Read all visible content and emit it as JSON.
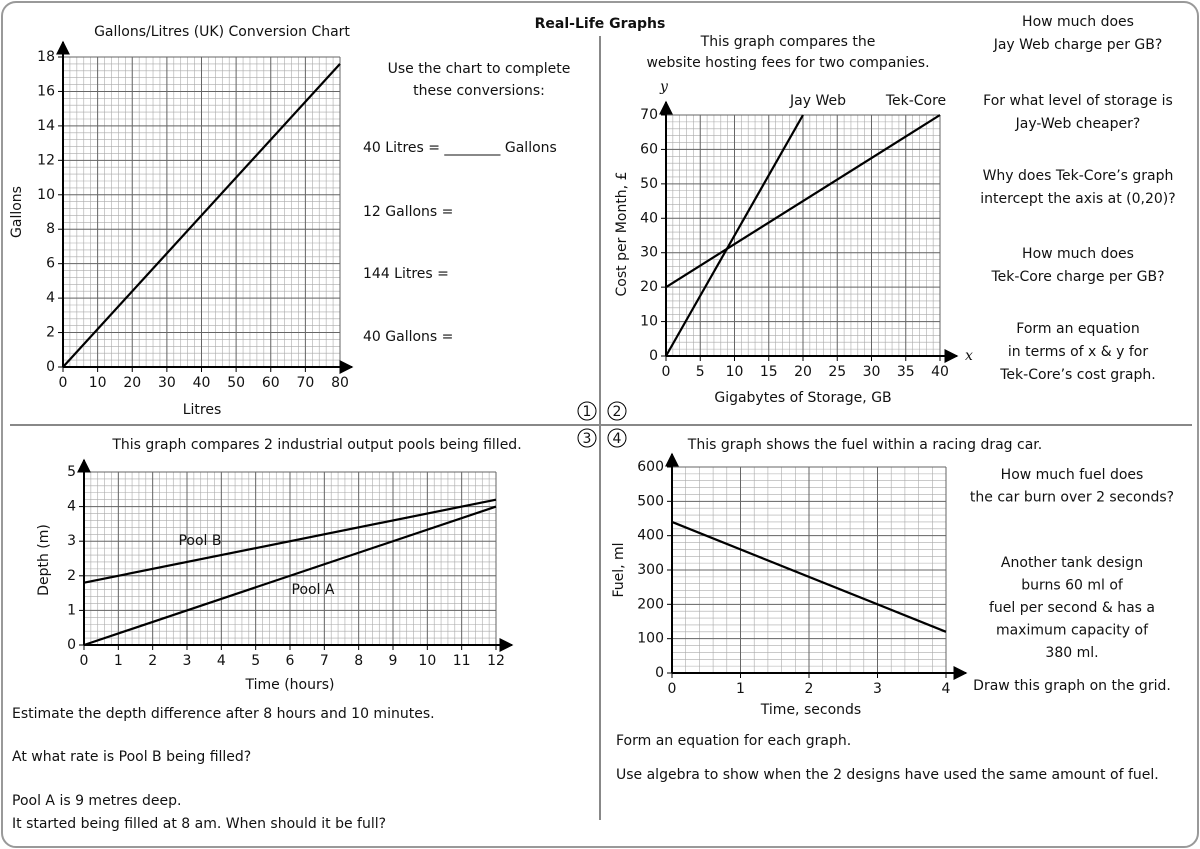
{
  "title": "Real-Life Graphs",
  "panels": [
    {
      "number": "1",
      "prompt": [
        "Use the chart to complete",
        "these conversions:"
      ],
      "conversions": [
        "40 Litres = ________ Gallons",
        "12 Gallons =",
        "144 Litres =",
        "40 Gallons ="
      ]
    },
    {
      "number": "2",
      "questions": [
        [
          "How much does",
          "Jay Web charge per GB?"
        ],
        [
          "For what level of storage is",
          "Jay-Web cheaper?"
        ],
        [
          "Why does Tek-Core’s graph",
          "intercept the axis at (0,20)?"
        ],
        [
          "How much does",
          "Tek-Core charge per GB?"
        ],
        [
          "Form an equation",
          "in terms of x & y for",
          "Tek-Core’s cost graph."
        ]
      ]
    },
    {
      "number": "3",
      "questions": [
        [
          "Estimate the depth difference after 8 hours and 10 minutes."
        ],
        [
          "At what rate is Pool B being filled?"
        ],
        [
          "Pool A is 9 metres deep.",
          "It started being filled at 8 am. When should it be full?"
        ]
      ]
    },
    {
      "number": "4",
      "questions": [
        [
          "How much fuel does",
          "the car burn over 2 seconds?"
        ],
        [
          "Another tank design",
          "burns 60 ml of",
          "fuel per second & has a",
          "maximum capacity of",
          "380 ml."
        ],
        [
          "Draw this graph on the grid."
        ]
      ],
      "follow_up": [
        "Form an equation for each graph.",
        "Use algebra to show when the 2 designs have used the same amount of fuel."
      ]
    }
  ],
  "chart_data": [
    {
      "type": "line",
      "title": "Gallons/Litres (UK) Conversion Chart",
      "x_label": "Litres",
      "y_label": "Gallons",
      "x": [
        0,
        80
      ],
      "values": [
        0,
        17.6
      ],
      "color": "#000000",
      "xlim": [
        0,
        80
      ],
      "ylim": [
        0,
        18
      ],
      "xticks": [
        0,
        10,
        20,
        30,
        40,
        50,
        60,
        70,
        80
      ],
      "yticks": [
        0,
        2,
        4,
        6,
        8,
        10,
        12,
        14,
        16,
        18
      ],
      "grid": true,
      "minor_grid": {
        "x": 2,
        "y": 0.4
      }
    },
    {
      "type": "line",
      "title": [
        "This graph compares the",
        "website hosting fees for two companies."
      ],
      "x_label": "Gigabytes of Storage, GB",
      "y_label": "Cost per Month, £",
      "x_symbol": "x",
      "y_symbol": "y",
      "series": [
        {
          "name": "Jay Web",
          "color": "#000000",
          "x": [
            0,
            20
          ],
          "values": [
            0,
            70
          ]
        },
        {
          "name": "Tek-Core",
          "color": "#000000",
          "x": [
            0,
            40
          ],
          "values": [
            20,
            70
          ]
        }
      ],
      "xlim": [
        0,
        40
      ],
      "ylim": [
        0,
        70
      ],
      "xticks": [
        0,
        5,
        10,
        15,
        20,
        25,
        30,
        35,
        40
      ],
      "yticks": [
        0,
        10,
        20,
        30,
        40,
        50,
        60,
        70
      ],
      "grid": true,
      "minor_grid": {
        "x": 1,
        "y": 2
      }
    },
    {
      "type": "line",
      "title": "This graph compares 2 industrial output pools being filled.",
      "x_label": "Time (hours)",
      "y_label": "Depth (m)",
      "series": [
        {
          "name": "Pool B",
          "color": "#000000",
          "x": [
            0,
            12
          ],
          "values": [
            1.8,
            4.2
          ]
        },
        {
          "name": "Pool A",
          "color": "#000000",
          "x": [
            0,
            12
          ],
          "values": [
            0,
            4
          ]
        }
      ],
      "xlim": [
        0,
        12
      ],
      "ylim": [
        0,
        5
      ],
      "xticks": [
        0,
        1,
        2,
        3,
        4,
        5,
        6,
        7,
        8,
        9,
        10,
        11,
        12
      ],
      "yticks": [
        0,
        1,
        2,
        3,
        4,
        5
      ],
      "grid": true,
      "minor_grid": {
        "x": 0.2,
        "y": 0.2
      }
    },
    {
      "type": "line",
      "title": "This graph shows the fuel within a racing drag car.",
      "x_label": "Time, seconds",
      "y_label": "Fuel, ml",
      "x": [
        0,
        4
      ],
      "values": [
        440,
        120
      ],
      "color": "#000000",
      "xlim": [
        0,
        4
      ],
      "ylim": [
        0,
        600
      ],
      "xticks": [
        0,
        1,
        2,
        3,
        4
      ],
      "yticks": [
        0,
        100,
        200,
        300,
        400,
        500,
        600
      ],
      "grid": true,
      "minor_grid": {
        "x": 0.2,
        "y": 20
      }
    }
  ]
}
